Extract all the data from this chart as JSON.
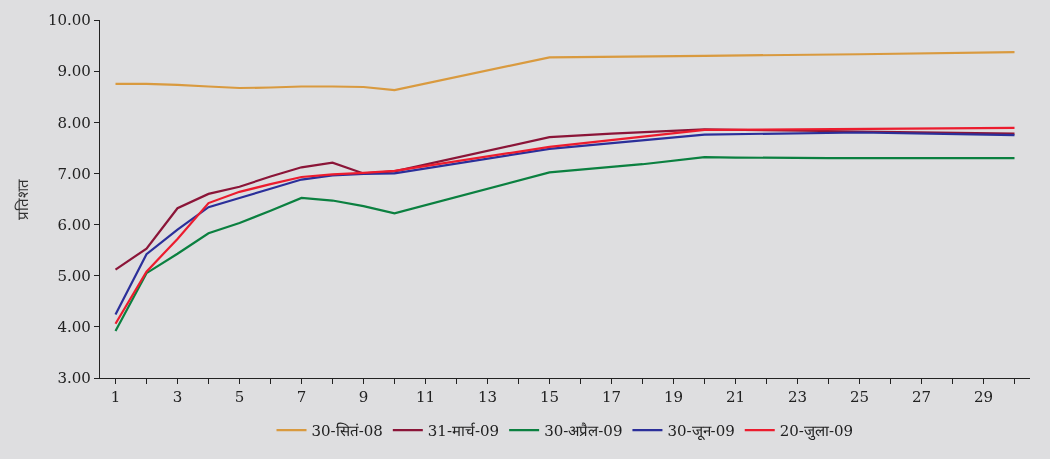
{
  "chart_data": {
    "type": "line",
    "ylabel": "प्रतिशत",
    "xlim": [
      0.5,
      30.5
    ],
    "ylim": [
      3,
      10
    ],
    "yticks": [
      {
        "value": 3,
        "label": "3.00"
      },
      {
        "value": 4,
        "label": "4.00"
      },
      {
        "value": 5,
        "label": "5.00"
      },
      {
        "value": 6,
        "label": "6.00"
      },
      {
        "value": 7,
        "label": "7.00"
      },
      {
        "value": 8,
        "label": "8.00"
      },
      {
        "value": 9,
        "label": "9.00"
      },
      {
        "value": 10,
        "label": "10.00"
      }
    ],
    "xticks": [
      1,
      {
        "value": 2,
        "label": null
      },
      3,
      {
        "value": 4,
        "label": null
      },
      5,
      {
        "value": 6,
        "label": null
      },
      7,
      {
        "value": 8,
        "label": null
      },
      9,
      {
        "value": 10,
        "label": null
      },
      11,
      {
        "value": 12,
        "label": null
      },
      13,
      {
        "value": 14,
        "label": null
      },
      15,
      {
        "value": 16,
        "label": null
      },
      17,
      {
        "value": 18,
        "label": null
      },
      19,
      {
        "value": 20,
        "label": null
      },
      21,
      {
        "value": 22,
        "label": null
      },
      23,
      {
        "value": 24,
        "label": null
      },
      25,
      {
        "value": 26,
        "label": null
      },
      27,
      {
        "value": 28,
        "label": null
      },
      29,
      {
        "value": 30,
        "label": null
      }
    ],
    "grid": false,
    "legend": "bottom",
    "marker": "none",
    "line_style": "solid",
    "series": [
      {
        "name": "30-सितं-08",
        "color": "#d99a3f",
        "x": [
          1,
          2,
          3,
          4,
          5,
          6,
          7,
          8,
          9,
          10,
          15,
          20,
          25,
          30
        ],
        "values": [
          8.75,
          8.75,
          8.73,
          8.7,
          8.67,
          8.68,
          8.7,
          8.7,
          8.69,
          8.63,
          9.27,
          9.3,
          9.33,
          9.37
        ]
      },
      {
        "name": "31-मार्च-09",
        "color": "#8b1538",
        "x": [
          1,
          2,
          3,
          4,
          5,
          6,
          7,
          8,
          9,
          10,
          15,
          17,
          20,
          25,
          30
        ],
        "values": [
          5.12,
          5.53,
          6.32,
          6.6,
          6.74,
          6.94,
          7.12,
          7.21,
          7.0,
          7.04,
          7.71,
          7.78,
          7.86,
          7.82,
          7.78
        ]
      },
      {
        "name": "30-अप्रैल-09",
        "color": "#0b8040",
        "x": [
          1,
          2,
          3,
          4,
          5,
          6,
          7,
          8,
          9,
          10,
          15,
          18,
          20,
          21,
          24,
          30
        ],
        "values": [
          3.92,
          5.05,
          5.43,
          5.83,
          6.03,
          6.27,
          6.52,
          6.47,
          6.36,
          6.22,
          7.02,
          7.18,
          7.32,
          7.31,
          7.3,
          7.3
        ]
      },
      {
        "name": "30-जून-09",
        "color": "#2b2f9a",
        "x": [
          1,
          2,
          3,
          4,
          5,
          6,
          7,
          8,
          9,
          10,
          15,
          20,
          25,
          30
        ],
        "values": [
          4.24,
          5.42,
          5.9,
          6.34,
          6.52,
          6.7,
          6.88,
          6.96,
          6.99,
          7.0,
          7.48,
          7.76,
          7.8,
          7.75
        ]
      },
      {
        "name": "20-जुला-09",
        "color": "#ec1c2e",
        "x": [
          1,
          2,
          3,
          4,
          5,
          6,
          7,
          8,
          9,
          10,
          15,
          20,
          30
        ],
        "values": [
          4.06,
          5.08,
          5.72,
          6.42,
          6.64,
          6.79,
          6.93,
          6.98,
          7.01,
          7.05,
          7.52,
          7.85,
          7.89
        ]
      }
    ]
  }
}
